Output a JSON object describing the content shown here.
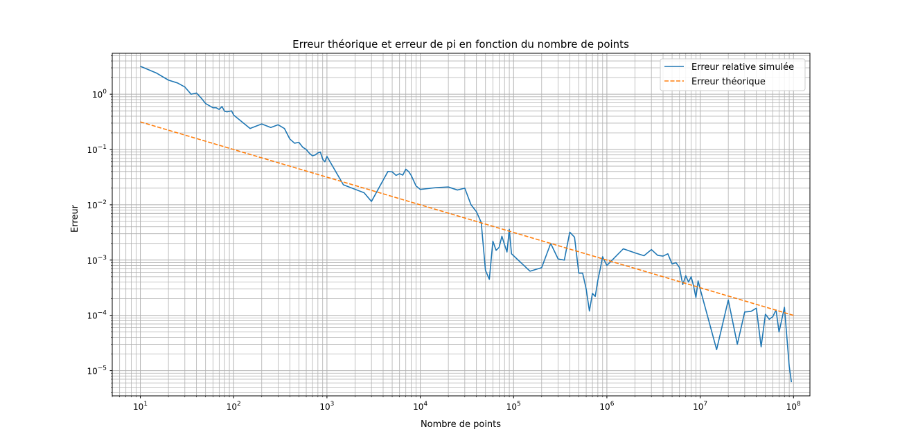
{
  "chart_data": {
    "type": "line",
    "title": "Erreur théorique et erreur de pi en fonction du nombre de points",
    "xlabel": "Nombre de points",
    "ylabel": "Erreur",
    "xscale": "log",
    "yscale": "log",
    "xlim": [
      5,
      150000000
    ],
    "ylim": [
      3.5e-06,
      5.5
    ],
    "grid": true,
    "legend_position": "top-right",
    "x_ticks": [
      {
        "value": 10,
        "base": "10",
        "exp": "1"
      },
      {
        "value": 100,
        "base": "10",
        "exp": "2"
      },
      {
        "value": 1000,
        "base": "10",
        "exp": "3"
      },
      {
        "value": 10000,
        "base": "10",
        "exp": "4"
      },
      {
        "value": 100000,
        "base": "10",
        "exp": "5"
      },
      {
        "value": 1000000,
        "base": "10",
        "exp": "6"
      },
      {
        "value": 10000000,
        "base": "10",
        "exp": "7"
      },
      {
        "value": 100000000,
        "base": "10",
        "exp": "8"
      }
    ],
    "y_ticks": [
      {
        "value": 1e-05,
        "base": "10",
        "exp": "−5"
      },
      {
        "value": 0.0001,
        "base": "10",
        "exp": "−4"
      },
      {
        "value": 0.001,
        "base": "10",
        "exp": "−3"
      },
      {
        "value": 0.01,
        "base": "10",
        "exp": "−2"
      },
      {
        "value": 0.1,
        "base": "10",
        "exp": "−1"
      },
      {
        "value": 1,
        "base": "10",
        "exp": "0"
      }
    ],
    "series": [
      {
        "name": "Erreur relative simulée",
        "color": "#1f77b4",
        "style": "solid",
        "points": [
          [
            10,
            3.2
          ],
          [
            15,
            2.4
          ],
          [
            20,
            1.8
          ],
          [
            25,
            1.6
          ],
          [
            30,
            1.35
          ],
          [
            35,
            1.0
          ],
          [
            40,
            1.05
          ],
          [
            45,
            0.85
          ],
          [
            50,
            0.68
          ],
          [
            60,
            0.57
          ],
          [
            65,
            0.57
          ],
          [
            70,
            0.53
          ],
          [
            75,
            0.6
          ],
          [
            80,
            0.49
          ],
          [
            85,
            0.48
          ],
          [
            95,
            0.5
          ],
          [
            100,
            0.42
          ],
          [
            150,
            0.24
          ],
          [
            200,
            0.29
          ],
          [
            250,
            0.25
          ],
          [
            300,
            0.28
          ],
          [
            350,
            0.24
          ],
          [
            400,
            0.155
          ],
          [
            450,
            0.13
          ],
          [
            500,
            0.135
          ],
          [
            550,
            0.11
          ],
          [
            600,
            0.1
          ],
          [
            650,
            0.085
          ],
          [
            700,
            0.077
          ],
          [
            750,
            0.08
          ],
          [
            800,
            0.087
          ],
          [
            850,
            0.09
          ],
          [
            900,
            0.067
          ],
          [
            950,
            0.06
          ],
          [
            1000,
            0.075
          ],
          [
            1500,
            0.023
          ],
          [
            2500,
            0.0165
          ],
          [
            3000,
            0.0115
          ],
          [
            4500,
            0.04
          ],
          [
            5000,
            0.0395
          ],
          [
            5500,
            0.034
          ],
          [
            6000,
            0.0365
          ],
          [
            6500,
            0.0345
          ],
          [
            7000,
            0.044
          ],
          [
            7500,
            0.04
          ],
          [
            8000,
            0.034
          ],
          [
            9000,
            0.022
          ],
          [
            10000,
            0.019
          ],
          [
            15000,
            0.0205
          ],
          [
            20000,
            0.021
          ],
          [
            25000,
            0.0185
          ],
          [
            30000,
            0.02
          ],
          [
            35000,
            0.01
          ],
          [
            40000,
            0.0075
          ],
          [
            45000,
            0.0048
          ],
          [
            50000,
            0.00065
          ],
          [
            55000,
            0.00045
          ],
          [
            60000,
            0.0022
          ],
          [
            65000,
            0.0015
          ],
          [
            70000,
            0.0017
          ],
          [
            75000,
            0.0027
          ],
          [
            80000,
            0.0019
          ],
          [
            85000,
            0.0014
          ],
          [
            90000,
            0.0036
          ],
          [
            95000,
            0.0013
          ],
          [
            100000,
            0.0012
          ],
          [
            150000,
            0.00063
          ],
          [
            200000,
            0.00073
          ],
          [
            250000,
            0.002
          ],
          [
            300000,
            0.00105
          ],
          [
            350000,
            0.001
          ],
          [
            400000,
            0.0032
          ],
          [
            450000,
            0.0026
          ],
          [
            500000,
            0.00058
          ],
          [
            550000,
            0.00058
          ],
          [
            600000,
            0.0003
          ],
          [
            650000,
            0.00012
          ],
          [
            700000,
            0.00025
          ],
          [
            750000,
            0.00022
          ],
          [
            800000,
            0.00043
          ],
          [
            850000,
            0.0007
          ],
          [
            900000,
            0.00115
          ],
          [
            950000,
            0.00095
          ],
          [
            1000000,
            0.0008
          ],
          [
            1500000,
            0.0016
          ],
          [
            2000000,
            0.00135
          ],
          [
            2500000,
            0.0012
          ],
          [
            3000000,
            0.00155
          ],
          [
            3500000,
            0.00122
          ],
          [
            4000000,
            0.00118
          ],
          [
            4500000,
            0.0013
          ],
          [
            5000000,
            0.00085
          ],
          [
            5500000,
            0.0009
          ],
          [
            6000000,
            0.00073
          ],
          [
            6500000,
            0.00036
          ],
          [
            7000000,
            0.00052
          ],
          [
            7500000,
            0.0004
          ],
          [
            8000000,
            0.0005
          ],
          [
            8500000,
            0.00034
          ],
          [
            9000000,
            0.00021
          ],
          [
            9500000,
            0.00042
          ],
          [
            10000000,
            0.0003
          ],
          [
            15000000,
            2.4e-05
          ],
          [
            20000000,
            0.00019
          ],
          [
            25000000,
            3e-05
          ],
          [
            30000000,
            0.000115
          ],
          [
            35000000,
            0.000118
          ],
          [
            40000000,
            0.000135
          ],
          [
            45000000,
            2.7e-05
          ],
          [
            50000000,
            0.000105
          ],
          [
            55000000,
            8.5e-05
          ],
          [
            60000000,
            9.5e-05
          ],
          [
            65000000,
            0.000125
          ],
          [
            70000000,
            5e-05
          ],
          [
            75000000,
            8.5e-05
          ],
          [
            80000000,
            0.00014
          ],
          [
            90000000,
            1.2e-05
          ],
          [
            95000000,
            6.2e-06
          ]
        ]
      },
      {
        "name": "Erreur théorique",
        "color": "#ff7f0e",
        "style": "dashed",
        "points": [
          [
            10,
            0.3162
          ],
          [
            100000000,
            0.0001
          ]
        ]
      }
    ]
  }
}
